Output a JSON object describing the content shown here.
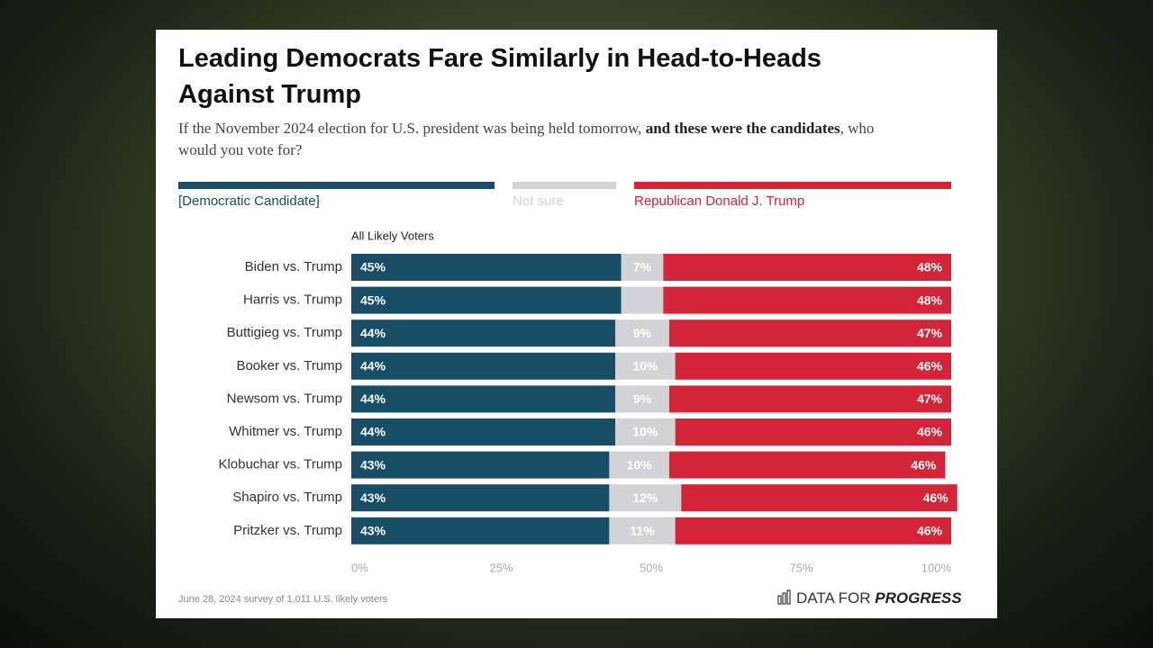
{
  "chart_data": {
    "type": "stacked-bar-horizontal",
    "title": "Leading Democrats Fare Similarly in Head-to-Heads Against Trump",
    "subtitle_parts": [
      "If the November 2024 election for U.S. president was being held tomorrow, ",
      "and these were the candidates",
      ", who would you vote for?"
    ],
    "group_label": "All Likely Voters",
    "categories": [
      "Biden vs. Trump",
      "Harris vs. Trump",
      "Buttigieg vs. Trump",
      "Booker vs. Trump",
      "Newsom vs. Trump",
      "Whitmer vs. Trump",
      "Klobuchar vs. Trump",
      "Shapiro vs. Trump",
      "Pritzker vs. Trump"
    ],
    "series": [
      {
        "name": "[Democratic Candidate]",
        "color": "#174e66",
        "values": [
          45,
          45,
          44,
          44,
          44,
          44,
          43,
          43,
          43
        ],
        "value_labels": [
          "45%",
          "45%",
          "44%",
          "44%",
          "44%",
          "44%",
          "43%",
          "43%",
          "43%"
        ]
      },
      {
        "name": "Not sure",
        "color": "#d3d3d5",
        "values": [
          7,
          7,
          9,
          10,
          9,
          10,
          10,
          12,
          11
        ],
        "value_labels": [
          "7%",
          null,
          "9%",
          "10%",
          "9%",
          "10%",
          "10%",
          "12%",
          "11%"
        ]
      },
      {
        "name": "Republican Donald J. Trump",
        "color": "#d32438",
        "values": [
          48,
          48,
          47,
          46,
          47,
          46,
          46,
          46,
          46
        ],
        "value_labels": [
          "48%",
          "48%",
          "47%",
          "46%",
          "47%",
          "46%",
          "46%",
          "46%",
          "46%"
        ]
      }
    ],
    "xlim": [
      0,
      100
    ],
    "xticks": [
      {
        "value": 0,
        "label": "0%"
      },
      {
        "value": 25,
        "label": "25%"
      },
      {
        "value": 50,
        "label": "50%"
      },
      {
        "value": 75,
        "label": "75%"
      },
      {
        "value": 100,
        "label": "100%"
      }
    ],
    "source": "June 28, 2024 survey of 1,011 U.S. likely voters",
    "logo_parts": [
      "DATA FOR",
      "PROGRESS"
    ]
  }
}
